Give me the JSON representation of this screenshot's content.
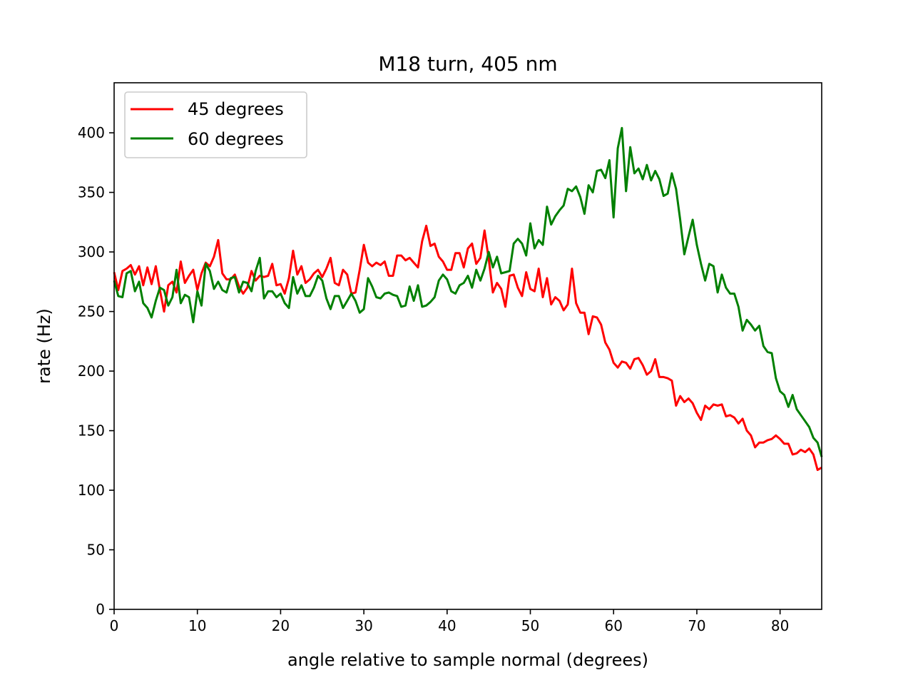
{
  "chart_data": {
    "type": "line",
    "title": "M18 turn, 405 nm",
    "xlabel": "angle relative to sample normal (degrees)",
    "ylabel": "rate (Hz)",
    "xlim": [
      0,
      85
    ],
    "ylim": [
      0,
      442
    ],
    "xticks": [
      0,
      10,
      20,
      30,
      40,
      50,
      60,
      70,
      80
    ],
    "yticks": [
      0,
      50,
      100,
      150,
      200,
      250,
      300,
      350,
      400
    ],
    "grid": false,
    "legend": "top-left",
    "series": [
      {
        "name": "45 degrees",
        "color": "#ff0000",
        "x": [
          0,
          0.5,
          1,
          1.5,
          2,
          2.5,
          3,
          3.5,
          4,
          4.5,
          5,
          5.5,
          6,
          6.5,
          7,
          7.5,
          8,
          8.5,
          9,
          9.5,
          10,
          10.5,
          11,
          11.5,
          12,
          12.5,
          13,
          13.5,
          14,
          14.5,
          15,
          15.5,
          16,
          16.5,
          17,
          17.5,
          18,
          18.5,
          19,
          19.5,
          20,
          20.5,
          21,
          21.5,
          22,
          22.5,
          23,
          23.5,
          24,
          24.5,
          25,
          25.5,
          26,
          26.5,
          27,
          27.5,
          28,
          28.5,
          29,
          29.5,
          30,
          30.5,
          31,
          31.5,
          32,
          32.5,
          33,
          33.5,
          34,
          34.5,
          35,
          35.5,
          36,
          36.5,
          37,
          37.5,
          38,
          38.5,
          39,
          39.5,
          40,
          40.5,
          41,
          41.5,
          42,
          42.5,
          43,
          43.5,
          44,
          44.5,
          45,
          45.5,
          46,
          46.5,
          47,
          47.5,
          48,
          48.5,
          49,
          49.5,
          50,
          50.5,
          51,
          51.5,
          52,
          52.5,
          53,
          53.5,
          54,
          54.5,
          55,
          55.5,
          56,
          56.5,
          57,
          57.5,
          58,
          58.5,
          59,
          59.5,
          60,
          60.5,
          61,
          61.5,
          62,
          62.5,
          63,
          63.5,
          64,
          64.5,
          65,
          65.5,
          66,
          66.5,
          67,
          67.5,
          68,
          68.5,
          69,
          69.5,
          70,
          70.5,
          71,
          71.5,
          72,
          72.5,
          73,
          73.5,
          74,
          74.5,
          75,
          75.5,
          76,
          76.5,
          77,
          77.5,
          78,
          78.5,
          79,
          79.5,
          80,
          80.5,
          81,
          81.5,
          82,
          82.5,
          83,
          83.5,
          84,
          84.5,
          85
        ],
        "y": [
          283,
          268,
          284,
          286,
          289,
          281,
          288,
          272,
          287,
          273,
          288,
          268,
          250,
          272,
          275,
          266,
          292,
          274,
          280,
          285,
          268,
          282,
          291,
          288,
          296,
          310,
          282,
          277,
          277,
          281,
          271,
          265,
          270,
          284,
          276,
          280,
          279,
          280,
          290,
          272,
          273,
          265,
          278,
          301,
          281,
          288,
          274,
          277,
          282,
          285,
          279,
          286,
          295,
          274,
          272,
          285,
          281,
          265,
          266,
          285,
          306,
          291,
          288,
          291,
          289,
          292,
          280,
          280,
          297,
          297,
          293,
          295,
          291,
          287,
          309,
          322,
          305,
          307,
          296,
          292,
          285,
          285,
          299,
          299,
          287,
          303,
          307,
          290,
          295,
          318,
          294,
          266,
          274,
          269,
          254,
          280,
          281,
          270,
          263,
          283,
          269,
          267,
          286,
          262,
          278,
          256,
          262,
          259,
          251,
          256,
          286,
          257,
          249,
          249,
          231,
          246,
          245,
          239,
          224,
          218,
          207,
          203,
          208,
          207,
          202,
          210,
          211,
          205,
          197,
          200,
          210,
          195,
          195,
          194,
          192,
          171,
          179,
          174,
          177,
          173,
          165,
          159,
          171,
          168,
          172,
          171,
          172,
          162,
          163,
          161,
          156,
          160,
          150,
          146,
          136,
          140,
          140,
          142,
          143,
          146,
          143,
          139,
          139,
          130,
          131,
          134,
          132,
          135,
          130,
          117,
          119
        ]
      },
      {
        "name": "60 degrees",
        "color": "#008000",
        "x": [
          0,
          0.5,
          1,
          1.5,
          2,
          2.5,
          3,
          3.5,
          4,
          4.5,
          5,
          5.5,
          6,
          6.5,
          7,
          7.5,
          8,
          8.5,
          9,
          9.5,
          10,
          10.5,
          11,
          11.5,
          12,
          12.5,
          13,
          13.5,
          14,
          14.5,
          15,
          15.5,
          16,
          16.5,
          17,
          17.5,
          18,
          18.5,
          19,
          19.5,
          20,
          20.5,
          21,
          21.5,
          22,
          22.5,
          23,
          23.5,
          24,
          24.5,
          25,
          25.5,
          26,
          26.5,
          27,
          27.5,
          28,
          28.5,
          29,
          29.5,
          30,
          30.5,
          31,
          31.5,
          32,
          32.5,
          33,
          33.5,
          34,
          34.5,
          35,
          35.5,
          36,
          36.5,
          37,
          37.5,
          38,
          38.5,
          39,
          39.5,
          40,
          40.5,
          41,
          41.5,
          42,
          42.5,
          43,
          43.5,
          44,
          44.5,
          45,
          45.5,
          46,
          46.5,
          47,
          47.5,
          48,
          48.5,
          49,
          49.5,
          50,
          50.5,
          51,
          51.5,
          52,
          52.5,
          53,
          53.5,
          54,
          54.5,
          55,
          55.5,
          56,
          56.5,
          57,
          57.5,
          58,
          58.5,
          59,
          59.5,
          60,
          60.5,
          61,
          61.5,
          62,
          62.5,
          63,
          63.5,
          64,
          64.5,
          65,
          65.5,
          66,
          66.5,
          67,
          67.5,
          68,
          68.5,
          69,
          69.5,
          70,
          70.5,
          71,
          71.5,
          72,
          72.5,
          73,
          73.5,
          74,
          74.5,
          75,
          75.5,
          76,
          76.5,
          77,
          77.5,
          78,
          78.5,
          79,
          79.5,
          80,
          80.5,
          81,
          81.5,
          82,
          82.5,
          83,
          83.5,
          84,
          84.5,
          85
        ],
        "y": [
          276,
          263,
          262,
          282,
          284,
          267,
          275,
          257,
          253,
          245,
          259,
          270,
          268,
          255,
          262,
          285,
          257,
          264,
          262,
          241,
          267,
          255,
          290,
          284,
          269,
          275,
          268,
          266,
          278,
          279,
          266,
          275,
          274,
          267,
          284,
          295,
          261,
          267,
          267,
          262,
          265,
          257,
          253,
          279,
          265,
          272,
          263,
          263,
          270,
          280,
          276,
          261,
          252,
          263,
          263,
          253,
          259,
          265,
          259,
          249,
          252,
          278,
          271,
          262,
          261,
          265,
          266,
          264,
          263,
          254,
          255,
          271,
          259,
          272,
          254,
          255,
          258,
          262,
          276,
          281,
          277,
          267,
          265,
          272,
          274,
          280,
          270,
          285,
          276,
          286,
          300,
          287,
          296,
          282,
          283,
          284,
          307,
          311,
          307,
          297,
          324,
          303,
          310,
          306,
          338,
          323,
          330,
          335,
          339,
          353,
          351,
          355,
          346,
          332,
          356,
          350,
          368,
          369,
          362,
          377,
          329,
          387,
          404,
          351,
          388,
          366,
          370,
          361,
          373,
          360,
          368,
          361,
          347,
          349,
          366,
          353,
          327,
          298,
          313,
          327,
          306,
          290,
          276,
          290,
          288,
          266,
          281,
          270,
          265,
          265,
          254,
          234,
          243,
          239,
          234,
          238,
          221,
          216,
          215,
          194,
          183,
          180,
          170,
          180,
          168,
          163,
          158,
          153,
          144,
          140,
          128
        ]
      }
    ]
  }
}
